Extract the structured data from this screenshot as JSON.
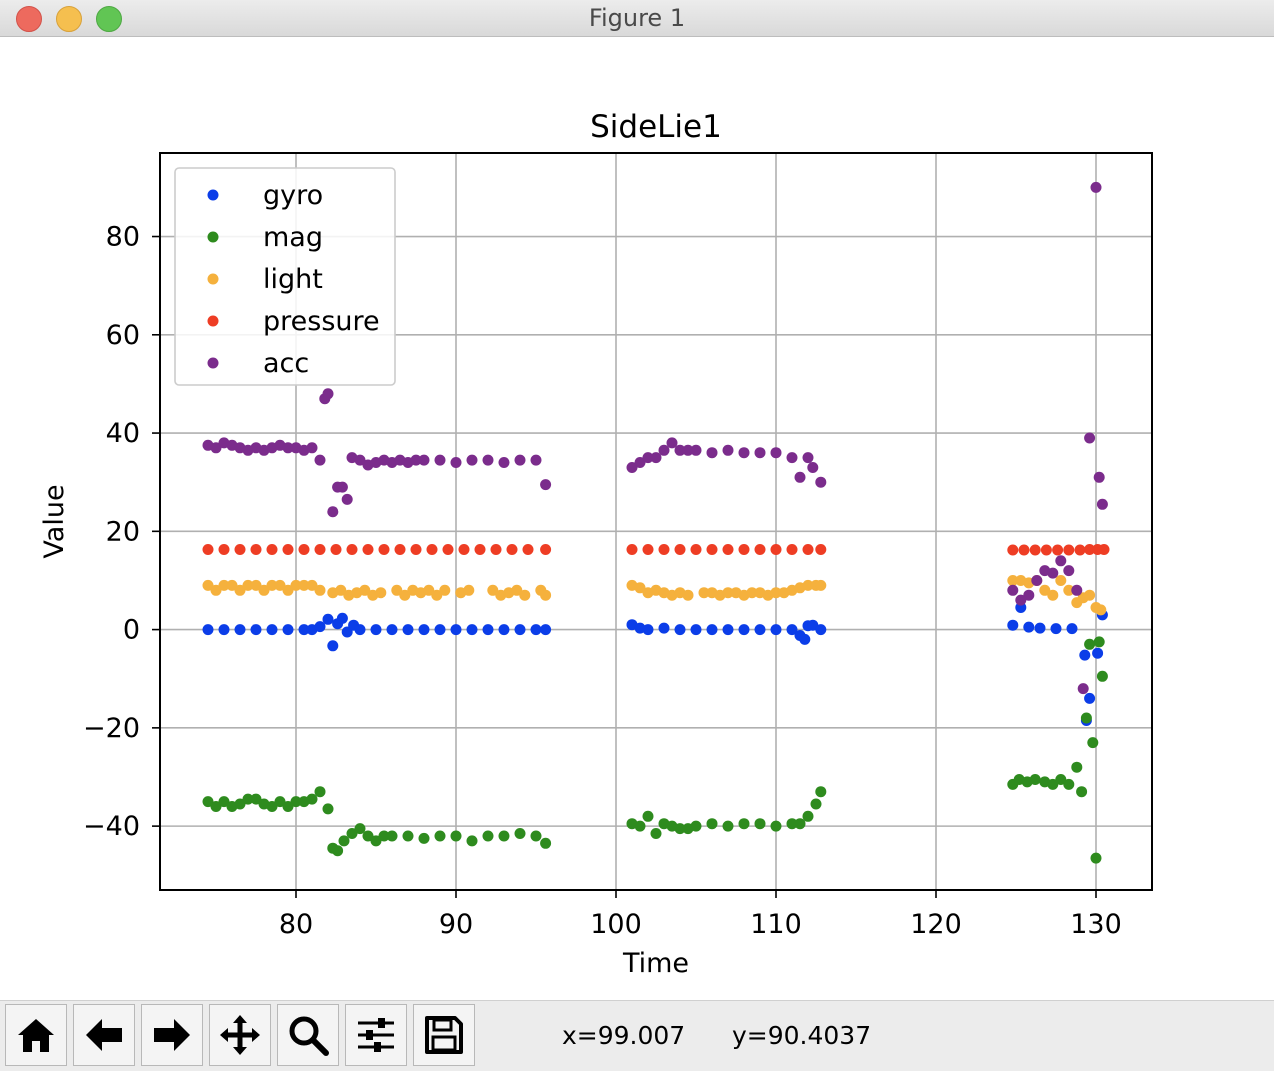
{
  "window": {
    "title": "Figure 1"
  },
  "toolbar": {
    "buttons": [
      "home-icon",
      "back-arrow-icon",
      "forward-arrow-icon",
      "pan-move-icon",
      "zoom-magnifier-icon",
      "configure-subplots-icon",
      "save-floppy-icon"
    ],
    "coord_x": "x=99.007",
    "coord_y": "y=90.4037"
  },
  "chart_data": {
    "type": "scatter",
    "title": "SideLie1",
    "xlabel": "Time",
    "ylabel": "Value",
    "xlim": [
      71.5,
      133.5
    ],
    "ylim": [
      -53,
      97
    ],
    "xticks": [
      80,
      90,
      100,
      110,
      120,
      130
    ],
    "yticks": [
      -40,
      -20,
      0,
      20,
      40,
      60,
      80
    ],
    "xtick_labels": [
      "80",
      "90",
      "100",
      "110",
      "120",
      "130"
    ],
    "ytick_labels": [
      "−40",
      "−20",
      "0",
      "20",
      "40",
      "60",
      "80"
    ],
    "grid": true,
    "legend": {
      "location": "upper-left",
      "entries": [
        "gyro",
        "mag",
        "light",
        "pressure",
        "acc"
      ]
    },
    "series": [
      {
        "name": "gyro",
        "color": "#0b3de8",
        "x": [
          74.5,
          75.5,
          76.5,
          77.5,
          78.5,
          79.5,
          80.5,
          81.0,
          81.5,
          82.0,
          82.3,
          82.6,
          82.9,
          83.2,
          83.6,
          84.0,
          85,
          86,
          87,
          88,
          89,
          90,
          91,
          92,
          93,
          94,
          95,
          95.6,
          101.0,
          101.5,
          102,
          103,
          104,
          105,
          106,
          107,
          108,
          109,
          110,
          111,
          111.5,
          111.8,
          112.0,
          112.3,
          112.8,
          124.8,
          125.3,
          125.8,
          126.5,
          127.5,
          128.5,
          129.3,
          129.4,
          129.6,
          130.1,
          130.4
        ],
        "y": [
          0,
          0,
          0,
          0,
          0,
          0,
          0,
          0,
          0.6,
          2.1,
          -3.3,
          1.2,
          2.3,
          -0.5,
          0.9,
          0,
          0,
          0,
          0,
          0,
          0,
          0,
          0,
          0,
          0,
          0,
          0,
          0,
          1.0,
          0.3,
          0,
          0.3,
          0,
          0,
          0,
          0,
          0,
          0,
          0,
          0,
          -1.2,
          -2.0,
          0.8,
          0.9,
          0,
          0.9,
          4.5,
          0.5,
          0.3,
          0.2,
          0.2,
          -5.2,
          -18.5,
          -14.0,
          -4.8,
          3.0
        ]
      },
      {
        "name": "mag",
        "color": "#2e8b1e",
        "x": [
          74.5,
          75,
          75.5,
          76,
          76.5,
          77,
          77.5,
          78,
          78.5,
          79,
          79.5,
          80,
          80.5,
          81,
          81.5,
          82,
          82.3,
          82.6,
          83,
          83.5,
          84,
          84.5,
          85,
          85.5,
          86,
          87,
          88,
          89,
          90,
          91,
          92,
          93,
          94,
          95,
          95.6,
          101,
          101.5,
          102,
          102.5,
          103,
          103.5,
          104,
          104.5,
          105,
          106,
          107,
          108,
          109,
          110,
          111,
          111.5,
          112,
          112.5,
          112.8,
          124.8,
          125.2,
          125.7,
          126.2,
          126.8,
          127.3,
          127.8,
          128.3,
          128.8,
          129.1,
          129.4,
          129.6,
          129.8,
          130.0,
          130.2,
          130.4
        ],
        "y": [
          -35,
          -36,
          -35,
          -36,
          -35.5,
          -34.5,
          -34.5,
          -35.5,
          -36,
          -35,
          -36,
          -35,
          -35,
          -34.5,
          -33,
          -36.5,
          -44.5,
          -45,
          -43,
          -41.5,
          -40.5,
          -42,
          -43,
          -42,
          -42,
          -42,
          -42.5,
          -42,
          -42,
          -43,
          -42,
          -42,
          -41.5,
          -42,
          -43.5,
          -39.5,
          -40,
          -38,
          -41.5,
          -39.5,
          -40,
          -40.5,
          -40.5,
          -40,
          -39.5,
          -40,
          -39.5,
          -39.5,
          -40,
          -39.5,
          -39.5,
          -38,
          -35.5,
          -33,
          -31.5,
          -30.5,
          -31,
          -30.5,
          -31,
          -31.5,
          -30.5,
          -31.5,
          -28,
          -33,
          -18,
          -3,
          -23,
          -46.5,
          -2.5,
          -9.5
        ]
      },
      {
        "name": "light",
        "color": "#f5b13d",
        "x": [
          74.5,
          75,
          75.5,
          76,
          76.5,
          77,
          77.5,
          78,
          78.5,
          79,
          79.5,
          80,
          80.5,
          81,
          81.5,
          82.3,
          82.8,
          83.3,
          83.8,
          84.3,
          84.8,
          85.3,
          86.3,
          86.8,
          87.3,
          87.8,
          88.3,
          88.8,
          89.3,
          90.3,
          90.8,
          92.3,
          92.8,
          93.3,
          93.8,
          94.3,
          95.3,
          95.6,
          101,
          101.5,
          102,
          102.5,
          103,
          103.5,
          104,
          104.5,
          105.5,
          106,
          106.5,
          107,
          107.5,
          108,
          108.5,
          109,
          109.5,
          110,
          110.5,
          111,
          111.5,
          112,
          112.5,
          112.8,
          124.8,
          125.3,
          125.8,
          126.3,
          126.8,
          127.3,
          127.8,
          128.3,
          128.8,
          129.2,
          129.6,
          130.0,
          130.3
        ],
        "y": [
          9,
          8,
          9,
          9,
          8,
          9,
          9,
          8,
          9,
          9,
          8,
          9,
          9,
          9,
          8,
          7.5,
          8,
          7,
          7.5,
          8,
          7,
          7.5,
          8,
          7,
          8,
          7.5,
          8,
          7,
          8,
          7.5,
          8,
          8,
          7,
          7.5,
          8,
          7,
          8,
          7,
          9,
          8.5,
          7.5,
          8,
          7.5,
          7,
          7.5,
          7,
          7.5,
          7.5,
          7,
          7.5,
          7.5,
          7,
          7.5,
          7.5,
          7,
          7.5,
          7.5,
          8,
          8.5,
          9,
          9,
          9,
          10,
          10,
          9.5,
          10,
          8,
          7,
          10,
          8,
          5.5,
          6.5,
          7,
          4.5,
          4
        ]
      },
      {
        "name": "pressure",
        "color": "#ee3d24",
        "x": [
          74.5,
          75.5,
          76.5,
          77.5,
          78.5,
          79.5,
          80.5,
          81.5,
          82.5,
          83.5,
          84.5,
          85.5,
          86.5,
          87.5,
          88.5,
          89.5,
          90.5,
          91.5,
          92.5,
          93.5,
          94.5,
          95.6,
          101,
          102,
          103,
          104,
          105,
          106,
          107,
          108,
          109,
          110,
          111,
          112,
          112.8,
          124.8,
          125.5,
          126.2,
          126.9,
          127.6,
          128.3,
          129.0,
          129.6,
          130.1,
          130.5
        ],
        "y": [
          16.3,
          16.3,
          16.3,
          16.3,
          16.3,
          16.3,
          16.3,
          16.3,
          16.3,
          16.3,
          16.3,
          16.3,
          16.3,
          16.3,
          16.3,
          16.3,
          16.3,
          16.3,
          16.3,
          16.3,
          16.3,
          16.3,
          16.3,
          16.3,
          16.3,
          16.3,
          16.3,
          16.3,
          16.3,
          16.3,
          16.3,
          16.3,
          16.3,
          16.3,
          16.3,
          16.2,
          16.2,
          16.2,
          16.2,
          16.2,
          16.2,
          16.2,
          16.3,
          16.3,
          16.3
        ]
      },
      {
        "name": "acc",
        "color": "#7b2c8c",
        "x": [
          74.5,
          75,
          75.5,
          76,
          76.5,
          77,
          77.5,
          78,
          78.5,
          79,
          79.5,
          80,
          80.5,
          81,
          81.5,
          81.8,
          82,
          82.3,
          82.6,
          82.9,
          83.2,
          83.5,
          84,
          84.5,
          85,
          85.5,
          86,
          86.5,
          87,
          87.5,
          88,
          89,
          90,
          91,
          92,
          93,
          94,
          95,
          95.6,
          101,
          101.5,
          102,
          102.5,
          103,
          103.5,
          104,
          104.5,
          105,
          106,
          107,
          108,
          109,
          110,
          111,
          111.5,
          112,
          112.3,
          112.8,
          124.8,
          125.3,
          125.8,
          126.3,
          126.8,
          127.3,
          127.8,
          128.3,
          128.8,
          129.2,
          129.6,
          130.0,
          130.2,
          130.4
        ],
        "y": [
          37.5,
          37,
          38,
          37.5,
          37,
          36.5,
          37,
          36.5,
          37,
          37.5,
          37,
          37,
          36.5,
          37,
          34.5,
          47,
          48,
          24,
          29,
          29,
          26.5,
          35,
          34.5,
          33.5,
          34,
          34.5,
          34,
          34.5,
          34,
          34.5,
          34.5,
          34.5,
          34,
          34.5,
          34.5,
          34,
          34.5,
          34.5,
          29.5,
          33,
          34,
          35,
          35,
          36.5,
          38,
          36.5,
          36.5,
          36.5,
          36,
          36.5,
          36,
          36,
          36,
          35,
          31,
          35,
          33,
          30,
          8,
          6,
          7,
          10,
          12,
          11.5,
          14,
          12,
          8,
          -12,
          39,
          90,
          31,
          25.5
        ]
      }
    ]
  }
}
